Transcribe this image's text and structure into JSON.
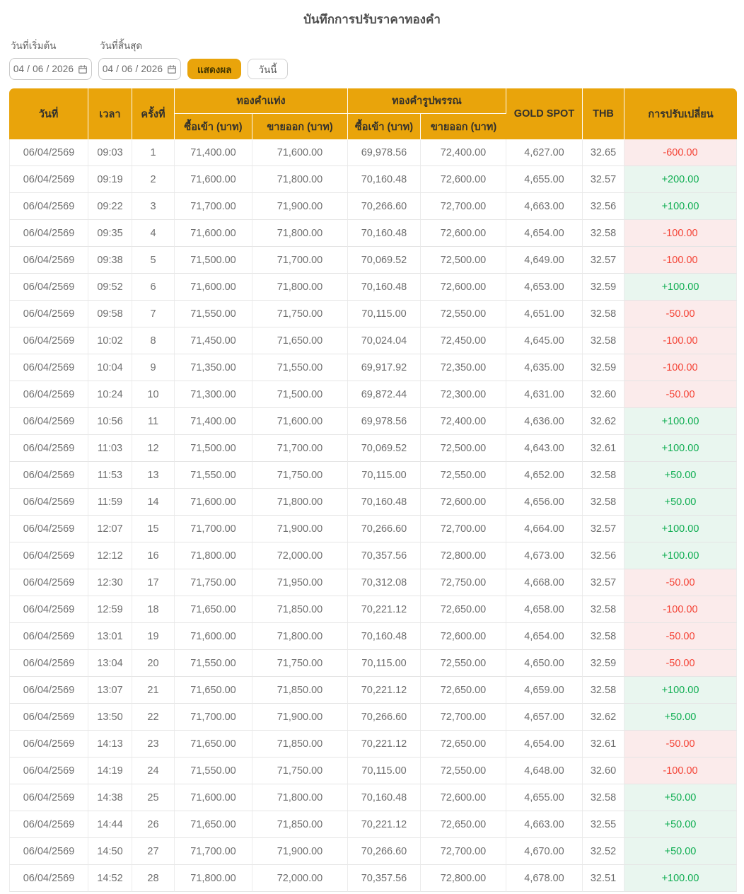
{
  "page": {
    "title": "บันทึกการปรับราคาทองคำ"
  },
  "filters": {
    "start_date_label": "วันที่เริ่มต้น",
    "end_date_label": "วันที่สิ้นสุด",
    "start_date_value": "04 / 06 / 2026",
    "end_date_value": "04 / 06 / 2026",
    "show_button_label": "แสดงผล",
    "today_button_label": "วันนี้"
  },
  "colors": {
    "header_gold": "#E9A40B",
    "positive_text": "#0EAD51",
    "positive_bg": "#E9F6EF",
    "negative_text": "#F44336",
    "negative_bg": "#FBEBEB"
  },
  "table": {
    "headers": {
      "date": "วันที่",
      "time": "เวลา",
      "round": "ครั้งที่",
      "gold_bar_group": "ทองคำแท่ง",
      "gold_ornament_group": "ทองคำรูปพรรณ",
      "buy": "ซื้อเข้า (บาท)",
      "sell": "ขายออก (บาท)",
      "gold_spot": "GOLD SPOT",
      "thb": "THB",
      "change": "การปรับเปลี่ยน"
    },
    "rows": [
      {
        "date": "06/04/2569",
        "time": "09:03",
        "round": "1",
        "bar_buy": "71,400.00",
        "bar_sell": "71,600.00",
        "orn_buy": "69,978.56",
        "orn_sell": "72,400.00",
        "gold_spot": "4,627.00",
        "thb": "32.65",
        "change": "-600.00",
        "direction": "down"
      },
      {
        "date": "06/04/2569",
        "time": "09:19",
        "round": "2",
        "bar_buy": "71,600.00",
        "bar_sell": "71,800.00",
        "orn_buy": "70,160.48",
        "orn_sell": "72,600.00",
        "gold_spot": "4,655.00",
        "thb": "32.57",
        "change": "+200.00",
        "direction": "up"
      },
      {
        "date": "06/04/2569",
        "time": "09:22",
        "round": "3",
        "bar_buy": "71,700.00",
        "bar_sell": "71,900.00",
        "orn_buy": "70,266.60",
        "orn_sell": "72,700.00",
        "gold_spot": "4,663.00",
        "thb": "32.56",
        "change": "+100.00",
        "direction": "up"
      },
      {
        "date": "06/04/2569",
        "time": "09:35",
        "round": "4",
        "bar_buy": "71,600.00",
        "bar_sell": "71,800.00",
        "orn_buy": "70,160.48",
        "orn_sell": "72,600.00",
        "gold_spot": "4,654.00",
        "thb": "32.58",
        "change": "-100.00",
        "direction": "down"
      },
      {
        "date": "06/04/2569",
        "time": "09:38",
        "round": "5",
        "bar_buy": "71,500.00",
        "bar_sell": "71,700.00",
        "orn_buy": "70,069.52",
        "orn_sell": "72,500.00",
        "gold_spot": "4,649.00",
        "thb": "32.57",
        "change": "-100.00",
        "direction": "down"
      },
      {
        "date": "06/04/2569",
        "time": "09:52",
        "round": "6",
        "bar_buy": "71,600.00",
        "bar_sell": "71,800.00",
        "orn_buy": "70,160.48",
        "orn_sell": "72,600.00",
        "gold_spot": "4,653.00",
        "thb": "32.59",
        "change": "+100.00",
        "direction": "up"
      },
      {
        "date": "06/04/2569",
        "time": "09:58",
        "round": "7",
        "bar_buy": "71,550.00",
        "bar_sell": "71,750.00",
        "orn_buy": "70,115.00",
        "orn_sell": "72,550.00",
        "gold_spot": "4,651.00",
        "thb": "32.58",
        "change": "-50.00",
        "direction": "down"
      },
      {
        "date": "06/04/2569",
        "time": "10:02",
        "round": "8",
        "bar_buy": "71,450.00",
        "bar_sell": "71,650.00",
        "orn_buy": "70,024.04",
        "orn_sell": "72,450.00",
        "gold_spot": "4,645.00",
        "thb": "32.58",
        "change": "-100.00",
        "direction": "down"
      },
      {
        "date": "06/04/2569",
        "time": "10:04",
        "round": "9",
        "bar_buy": "71,350.00",
        "bar_sell": "71,550.00",
        "orn_buy": "69,917.92",
        "orn_sell": "72,350.00",
        "gold_spot": "4,635.00",
        "thb": "32.59",
        "change": "-100.00",
        "direction": "down"
      },
      {
        "date": "06/04/2569",
        "time": "10:24",
        "round": "10",
        "bar_buy": "71,300.00",
        "bar_sell": "71,500.00",
        "orn_buy": "69,872.44",
        "orn_sell": "72,300.00",
        "gold_spot": "4,631.00",
        "thb": "32.60",
        "change": "-50.00",
        "direction": "down"
      },
      {
        "date": "06/04/2569",
        "time": "10:56",
        "round": "11",
        "bar_buy": "71,400.00",
        "bar_sell": "71,600.00",
        "orn_buy": "69,978.56",
        "orn_sell": "72,400.00",
        "gold_spot": "4,636.00",
        "thb": "32.62",
        "change": "+100.00",
        "direction": "up"
      },
      {
        "date": "06/04/2569",
        "time": "11:03",
        "round": "12",
        "bar_buy": "71,500.00",
        "bar_sell": "71,700.00",
        "orn_buy": "70,069.52",
        "orn_sell": "72,500.00",
        "gold_spot": "4,643.00",
        "thb": "32.61",
        "change": "+100.00",
        "direction": "up"
      },
      {
        "date": "06/04/2569",
        "time": "11:53",
        "round": "13",
        "bar_buy": "71,550.00",
        "bar_sell": "71,750.00",
        "orn_buy": "70,115.00",
        "orn_sell": "72,550.00",
        "gold_spot": "4,652.00",
        "thb": "32.58",
        "change": "+50.00",
        "direction": "up"
      },
      {
        "date": "06/04/2569",
        "time": "11:59",
        "round": "14",
        "bar_buy": "71,600.00",
        "bar_sell": "71,800.00",
        "orn_buy": "70,160.48",
        "orn_sell": "72,600.00",
        "gold_spot": "4,656.00",
        "thb": "32.58",
        "change": "+50.00",
        "direction": "up"
      },
      {
        "date": "06/04/2569",
        "time": "12:07",
        "round": "15",
        "bar_buy": "71,700.00",
        "bar_sell": "71,900.00",
        "orn_buy": "70,266.60",
        "orn_sell": "72,700.00",
        "gold_spot": "4,664.00",
        "thb": "32.57",
        "change": "+100.00",
        "direction": "up"
      },
      {
        "date": "06/04/2569",
        "time": "12:12",
        "round": "16",
        "bar_buy": "71,800.00",
        "bar_sell": "72,000.00",
        "orn_buy": "70,357.56",
        "orn_sell": "72,800.00",
        "gold_spot": "4,673.00",
        "thb": "32.56",
        "change": "+100.00",
        "direction": "up"
      },
      {
        "date": "06/04/2569",
        "time": "12:30",
        "round": "17",
        "bar_buy": "71,750.00",
        "bar_sell": "71,950.00",
        "orn_buy": "70,312.08",
        "orn_sell": "72,750.00",
        "gold_spot": "4,668.00",
        "thb": "32.57",
        "change": "-50.00",
        "direction": "down"
      },
      {
        "date": "06/04/2569",
        "time": "12:59",
        "round": "18",
        "bar_buy": "71,650.00",
        "bar_sell": "71,850.00",
        "orn_buy": "70,221.12",
        "orn_sell": "72,650.00",
        "gold_spot": "4,658.00",
        "thb": "32.58",
        "change": "-100.00",
        "direction": "down"
      },
      {
        "date": "06/04/2569",
        "time": "13:01",
        "round": "19",
        "bar_buy": "71,600.00",
        "bar_sell": "71,800.00",
        "orn_buy": "70,160.48",
        "orn_sell": "72,600.00",
        "gold_spot": "4,654.00",
        "thb": "32.58",
        "change": "-50.00",
        "direction": "down"
      },
      {
        "date": "06/04/2569",
        "time": "13:04",
        "round": "20",
        "bar_buy": "71,550.00",
        "bar_sell": "71,750.00",
        "orn_buy": "70,115.00",
        "orn_sell": "72,550.00",
        "gold_spot": "4,650.00",
        "thb": "32.59",
        "change": "-50.00",
        "direction": "down"
      },
      {
        "date": "06/04/2569",
        "time": "13:07",
        "round": "21",
        "bar_buy": "71,650.00",
        "bar_sell": "71,850.00",
        "orn_buy": "70,221.12",
        "orn_sell": "72,650.00",
        "gold_spot": "4,659.00",
        "thb": "32.58",
        "change": "+100.00",
        "direction": "up"
      },
      {
        "date": "06/04/2569",
        "time": "13:50",
        "round": "22",
        "bar_buy": "71,700.00",
        "bar_sell": "71,900.00",
        "orn_buy": "70,266.60",
        "orn_sell": "72,700.00",
        "gold_spot": "4,657.00",
        "thb": "32.62",
        "change": "+50.00",
        "direction": "up"
      },
      {
        "date": "06/04/2569",
        "time": "14:13",
        "round": "23",
        "bar_buy": "71,650.00",
        "bar_sell": "71,850.00",
        "orn_buy": "70,221.12",
        "orn_sell": "72,650.00",
        "gold_spot": "4,654.00",
        "thb": "32.61",
        "change": "-50.00",
        "direction": "down"
      },
      {
        "date": "06/04/2569",
        "time": "14:19",
        "round": "24",
        "bar_buy": "71,550.00",
        "bar_sell": "71,750.00",
        "orn_buy": "70,115.00",
        "orn_sell": "72,550.00",
        "gold_spot": "4,648.00",
        "thb": "32.60",
        "change": "-100.00",
        "direction": "down"
      },
      {
        "date": "06/04/2569",
        "time": "14:38",
        "round": "25",
        "bar_buy": "71,600.00",
        "bar_sell": "71,800.00",
        "orn_buy": "70,160.48",
        "orn_sell": "72,600.00",
        "gold_spot": "4,655.00",
        "thb": "32.58",
        "change": "+50.00",
        "direction": "up"
      },
      {
        "date": "06/04/2569",
        "time": "14:44",
        "round": "26",
        "bar_buy": "71,650.00",
        "bar_sell": "71,850.00",
        "orn_buy": "70,221.12",
        "orn_sell": "72,650.00",
        "gold_spot": "4,663.00",
        "thb": "32.55",
        "change": "+50.00",
        "direction": "up"
      },
      {
        "date": "06/04/2569",
        "time": "14:50",
        "round": "27",
        "bar_buy": "71,700.00",
        "bar_sell": "71,900.00",
        "orn_buy": "70,266.60",
        "orn_sell": "72,700.00",
        "gold_spot": "4,670.00",
        "thb": "32.52",
        "change": "+50.00",
        "direction": "up"
      },
      {
        "date": "06/04/2569",
        "time": "14:52",
        "round": "28",
        "bar_buy": "71,800.00",
        "bar_sell": "72,000.00",
        "orn_buy": "70,357.56",
        "orn_sell": "72,800.00",
        "gold_spot": "4,678.00",
        "thb": "32.51",
        "change": "+100.00",
        "direction": "up"
      }
    ]
  }
}
